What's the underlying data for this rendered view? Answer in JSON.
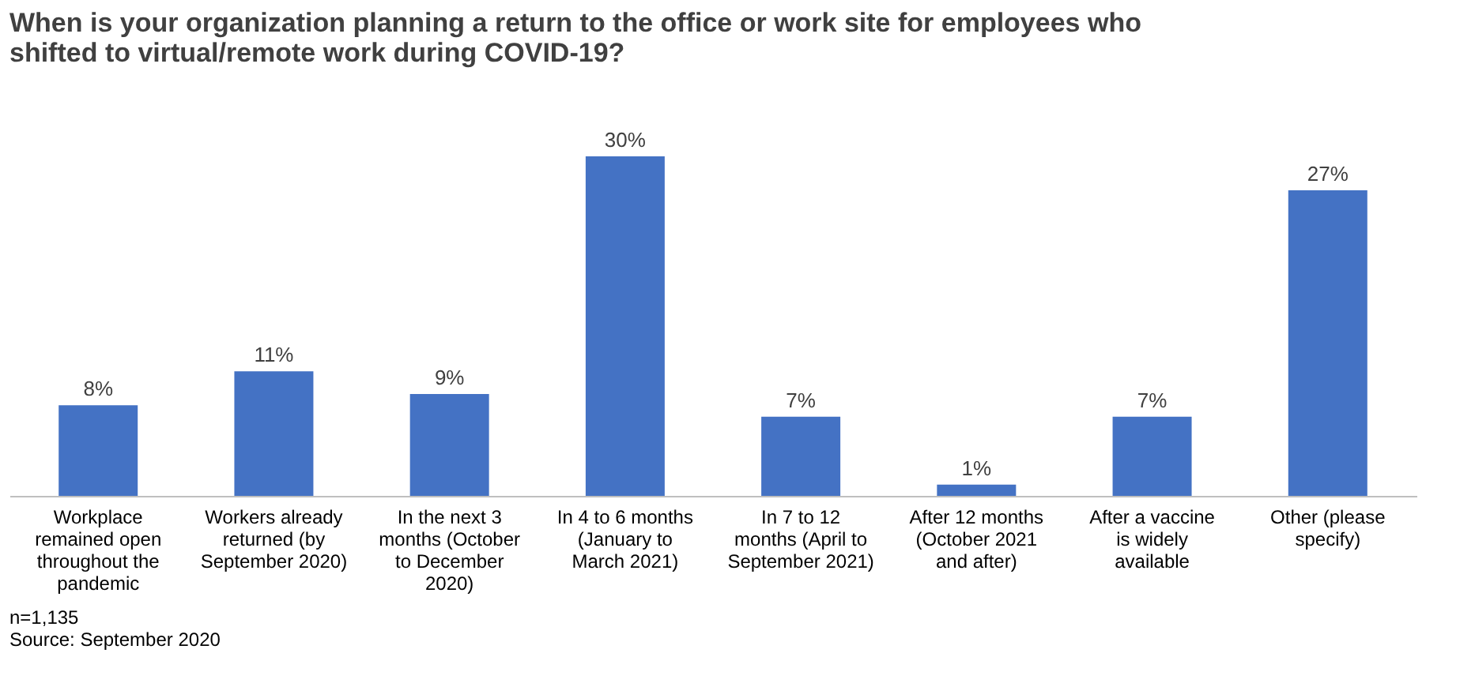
{
  "chart_data": {
    "type": "bar",
    "title": "When is your organization planning a return to the office or work site for employees who shifted to virtual/remote work during COVID-19?",
    "categories": [
      "Workplace remained open throughout the pandemic",
      "Workers already returned (by September 2020)",
      "In the next 3 months (October to December 2020)",
      "In 4 to 6 months (January to March 2021)",
      "In 7 to 12 months (April to September 2021)",
      "After 12 months (October 2021 and after)",
      "After a vaccine is widely available",
      "Other (please specify)"
    ],
    "values": [
      8,
      11,
      9,
      30,
      7,
      1,
      7,
      27
    ],
    "value_labels": [
      "8%",
      "11%",
      "9%",
      "30%",
      "7%",
      "1%",
      "7%",
      "27%"
    ],
    "color": "#4472c4",
    "grid": false,
    "annotations": [
      "n=1,135",
      "Source: September 2020"
    ]
  }
}
